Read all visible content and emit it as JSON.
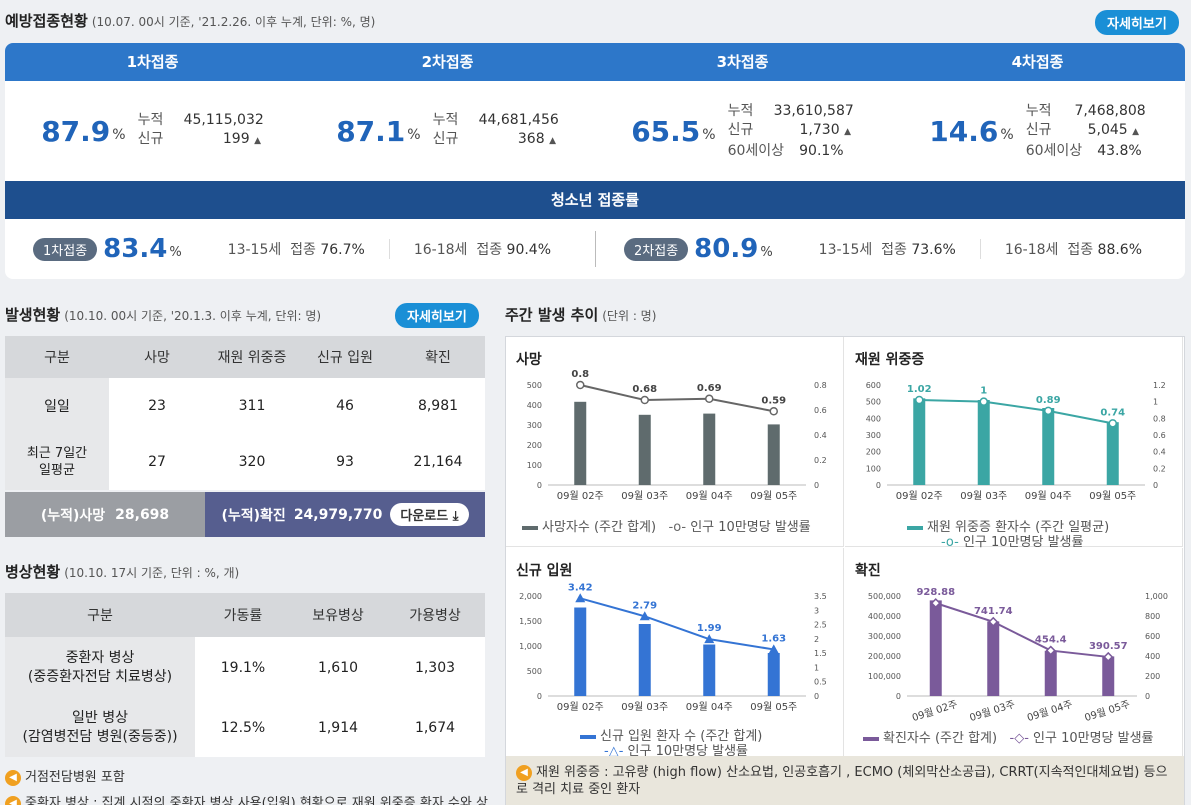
{
  "vaccination": {
    "title": "예방접종현황",
    "subtitle": "(10.07. 00시 기준, '21.2.26. 이후 누계, 단위: %, 명)",
    "detail_button": "자세히보기",
    "doses": [
      {
        "label": "1차접종",
        "rate": "87.9",
        "unit": "%",
        "cum_label": "누적",
        "cum": "45,115,032",
        "new_label": "신규",
        "new": "199"
      },
      {
        "label": "2차접종",
        "rate": "87.1",
        "unit": "%",
        "cum_label": "누적",
        "cum": "44,681,456",
        "new_label": "신규",
        "new": "368"
      },
      {
        "label": "3차접종",
        "rate": "65.5",
        "unit": "%",
        "cum_label": "누적",
        "cum": "33,610,587",
        "new_label": "신규",
        "new": "1,730",
        "sixty_label": "60세이상",
        "sixty": "90.1%"
      },
      {
        "label": "4차접종",
        "rate": "14.6",
        "unit": "%",
        "cum_label": "누적",
        "cum": "7,468,808",
        "new_label": "신규",
        "new": "5,045",
        "sixty_label": "60세이상",
        "sixty": "43.8%"
      }
    ],
    "up_arrow": "▲",
    "youth": {
      "title": "청소년 접종률",
      "first": {
        "pill": "1차접종",
        "rate": "83.4",
        "unit": "%",
        "g1_age": "13-15세",
        "g1_label": "접종",
        "g1_val": "76.7%",
        "g2_age": "16-18세",
        "g2_label": "접종",
        "g2_val": "90.4%"
      },
      "second": {
        "pill": "2차접종",
        "rate": "80.9",
        "unit": "%",
        "g1_age": "13-15세",
        "g1_label": "접종",
        "g1_val": "73.6%",
        "g2_age": "16-18세",
        "g2_label": "접종",
        "g2_val": "88.6%"
      }
    }
  },
  "outbreak": {
    "title": "발생현황",
    "subtitle": "(10.10. 00시 기준, '20.1.3. 이후 누계, 단위: 명)",
    "detail_button": "자세히보기",
    "headers": [
      "구분",
      "사망",
      "재원 위중증",
      "신규 입원",
      "확진"
    ],
    "rows": [
      {
        "label": "일일",
        "values": [
          "23",
          "311",
          "46",
          "8,981"
        ]
      },
      {
        "label": "최근 7일간\n일평균",
        "values": [
          "27",
          "320",
          "93",
          "21,164"
        ]
      }
    ],
    "cum_death_label": "(누적)사망",
    "cum_death": "28,698",
    "cum_conf_label": "(누적)확진",
    "cum_conf": "24,979,770",
    "download": "다운로드"
  },
  "beds": {
    "title": "병상현황",
    "subtitle": "(10.10. 17시 기준, 단위 : %, 개)",
    "headers": [
      "구분",
      "가동률",
      "보유병상",
      "가용병상"
    ],
    "rows": [
      {
        "label1": "중환자 병상",
        "label2": "(중증환자전담 치료병상)",
        "values": [
          "19.1%",
          "1,610",
          "1,303"
        ]
      },
      {
        "label1": "일반 병상",
        "label2": "(감염병전담 병원(중등중))",
        "values": [
          "12.5%",
          "1,914",
          "1,674"
        ]
      }
    ],
    "note1": "거점전담병원 포함",
    "note2": "중환자 병상 : 집계 시점의 중환자 병상 사용(입원) 현황으로 재원 위중증 환자 수와 상"
  },
  "weekly": {
    "title": "주간 발생 추이",
    "subtitle": "(단위 : 명)",
    "note": "재원 위중증 : 고유량 (high flow) 산소요법, 인공호흡기 , ECMO (체외막산소공급), CRRT(지속적인대체요법) 등으로 격리 치료 중인 환자"
  },
  "chart_data": [
    {
      "type": "bar",
      "title": "사망",
      "categories": [
        "09월 02주",
        "09월 03주",
        "09월 04주",
        "09월 05주"
      ],
      "series": [
        {
          "name": "사망자수 (주간 합계)",
          "type": "bar",
          "values": [
            416,
            351,
            357,
            303
          ]
        },
        {
          "name": "인구 10만명당 발생률",
          "type": "line",
          "values": [
            0.8,
            0.68,
            0.69,
            0.59
          ],
          "labels": [
            "0.8",
            "0.68",
            "0.69",
            "0.59"
          ]
        }
      ],
      "y_ticks": [
        "0",
        "100",
        "200",
        "300",
        "400",
        "500"
      ],
      "ylim": [
        0,
        500
      ],
      "y2_ticks": [
        "0",
        "0.2",
        "0.4",
        "0.6",
        "0.8"
      ],
      "y2lim": [
        0,
        0.8
      ],
      "bar_color": "#5f6b6d",
      "line_color": "#666666"
    },
    {
      "type": "bar",
      "title": "재원 위중증",
      "categories": [
        "09월 02주",
        "09월 03주",
        "09월 04주",
        "09월 05주"
      ],
      "series": [
        {
          "name": "재원 위중증 환자수 (주간 일평균)",
          "type": "bar",
          "values": [
            520,
            510,
            462,
            377
          ]
        },
        {
          "name": "인구 10만명당 발생률",
          "type": "line",
          "values": [
            1.02,
            1,
            0.89,
            0.74
          ],
          "labels": [
            "1.02",
            "1",
            "0.89",
            "0.74"
          ]
        }
      ],
      "y_ticks": [
        "0",
        "100",
        "200",
        "300",
        "400",
        "500",
        "600"
      ],
      "ylim": [
        0,
        600
      ],
      "y2_ticks": [
        "0",
        "0.2",
        "0.4",
        "0.6",
        "0.8",
        "1",
        "1.2"
      ],
      "y2lim": [
        0,
        1.2
      ],
      "bar_color": "#3ba6a4",
      "line_color": "#3ba6a4"
    },
    {
      "type": "bar",
      "title": "신규 입원",
      "categories": [
        "09월 02주",
        "09월 03주",
        "09월 04주",
        "09월 05주"
      ],
      "series": [
        {
          "name": "신규 입원 환자 수 (주간 합계)",
          "type": "bar",
          "values": [
            1770,
            1440,
            1030,
            860
          ]
        },
        {
          "name": "인구 10만명당 발생률",
          "type": "line",
          "values": [
            3.42,
            2.79,
            1.99,
            1.63
          ],
          "labels": [
            "3.42",
            "2.79",
            "1.99",
            "1.63"
          ]
        }
      ],
      "y_ticks": [
        "0",
        "500",
        "1,000",
        "1,500",
        "2,000"
      ],
      "ylim": [
        0,
        2000
      ],
      "y2_ticks": [
        "0",
        "0.5",
        "1",
        "1.5",
        "2",
        "2.5",
        "3",
        "3.5"
      ],
      "y2lim": [
        0,
        3.5
      ],
      "bar_color": "#3474d4",
      "line_color": "#3474d4"
    },
    {
      "type": "bar",
      "title": "확진",
      "categories": [
        "09월 02주",
        "09월 03주",
        "09월 04주",
        "09월 05주"
      ],
      "series": [
        {
          "name": "확진자수 (주간 합계)",
          "type": "bar",
          "values": [
            478000,
            373000,
            226000,
            198000
          ]
        },
        {
          "name": "인구 10만명당 발생률",
          "type": "line",
          "values": [
            928.88,
            741.74,
            454.4,
            390.57
          ],
          "labels": [
            "928.88",
            "741.74",
            "454.4",
            "390.57"
          ]
        }
      ],
      "y_ticks": [
        "0",
        "100,000",
        "200,000",
        "300,000",
        "400,000",
        "500,000"
      ],
      "ylim": [
        0,
        500000
      ],
      "y2_ticks": [
        "0",
        "200",
        "400",
        "600",
        "800",
        "1,000"
      ],
      "y2lim": [
        0,
        1000
      ],
      "bar_color": "#7a5a9a",
      "line_color": "#7a5a9a"
    }
  ]
}
